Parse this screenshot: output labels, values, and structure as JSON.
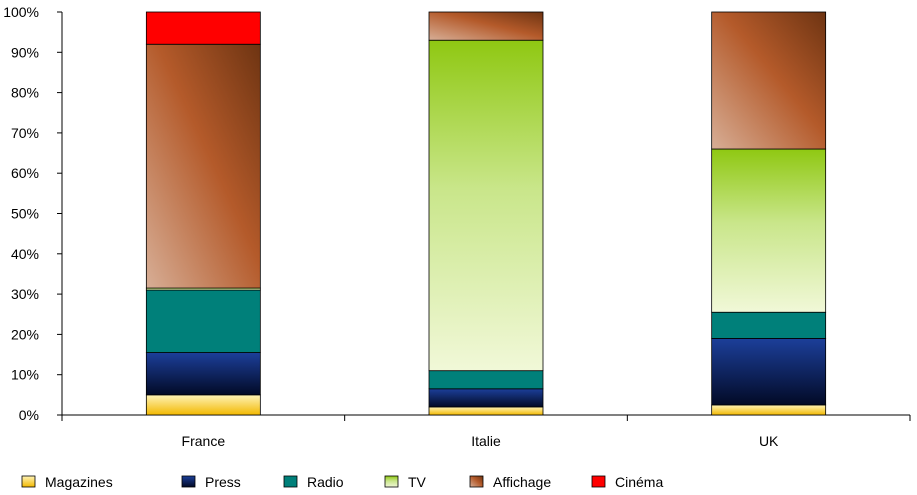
{
  "chart_data": {
    "type": "bar",
    "stacked": true,
    "percent": true,
    "categories": [
      "France",
      "Italie",
      "UK"
    ],
    "series": [
      {
        "name": "Magazines",
        "values": [
          5,
          2,
          2.5
        ],
        "color": "#f5c200",
        "fill": "grad-magazines"
      },
      {
        "name": "Press",
        "values": [
          10.5,
          4.5,
          16.5
        ],
        "color": "#0a2a7a",
        "fill": "grad-press"
      },
      {
        "name": "Radio",
        "values": [
          15.5,
          4.5,
          6.5
        ],
        "color": "#00807a",
        "fill": "solid-radio"
      },
      {
        "name": "TV",
        "values": [
          0.5,
          82,
          40.5
        ],
        "color": "#9acd20",
        "fill": "grad-tv"
      },
      {
        "name": "Affichage",
        "values": [
          60.5,
          7,
          34
        ],
        "color": "#b0582a",
        "fill": "grad-affichage"
      },
      {
        "name": "Cinéma",
        "values": [
          8,
          0,
          0
        ],
        "color": "#ff0000",
        "fill": "solid-cinema"
      }
    ],
    "ylim": [
      0,
      100
    ],
    "yticks": [
      "0%",
      "10%",
      "20%",
      "30%",
      "40%",
      "50%",
      "60%",
      "70%",
      "80%",
      "90%",
      "100%"
    ],
    "title": "",
    "xlabel": "",
    "ylabel": "",
    "grid": false,
    "legend_position": "bottom"
  }
}
